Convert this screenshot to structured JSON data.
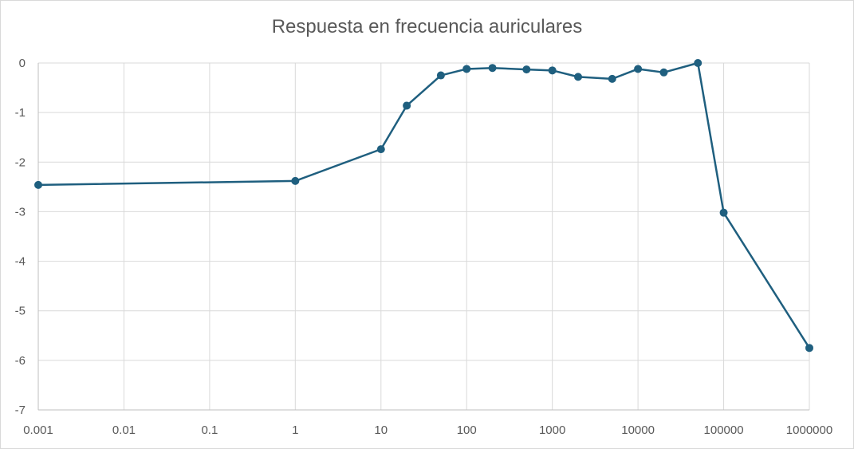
{
  "chart_data": {
    "type": "line",
    "title": "Respuesta en frecuencia auriculares",
    "xlabel": "",
    "ylabel": "",
    "x_scale": "log",
    "xlim": [
      0.001,
      1000000
    ],
    "ylim": [
      -7,
      0
    ],
    "x_ticks": [
      "0.001",
      "0.01",
      "0.1",
      "1",
      "10",
      "100",
      "1000",
      "10000",
      "100000",
      "1000000"
    ],
    "y_ticks": [
      "0",
      "-1",
      "-2",
      "-3",
      "-4",
      "-5",
      "-6",
      "-7"
    ],
    "grid": true,
    "legend": "none",
    "colors": {
      "series": "#1f5f7f",
      "grid": "#d9d9d9",
      "axis": "#bfbfbf",
      "text": "#595959"
    },
    "series": [
      {
        "x": [
          0.001,
          1,
          10,
          20,
          50,
          100,
          200,
          500,
          1000,
          2000,
          5000,
          10000,
          20000,
          50000,
          100000,
          1000000
        ],
        "y": [
          -2.46,
          -2.38,
          -1.74,
          -0.86,
          -0.25,
          -0.12,
          -0.1,
          -0.13,
          -0.15,
          -0.28,
          -0.32,
          -0.12,
          -0.19,
          0.0,
          -3.02,
          -5.75
        ]
      }
    ]
  }
}
